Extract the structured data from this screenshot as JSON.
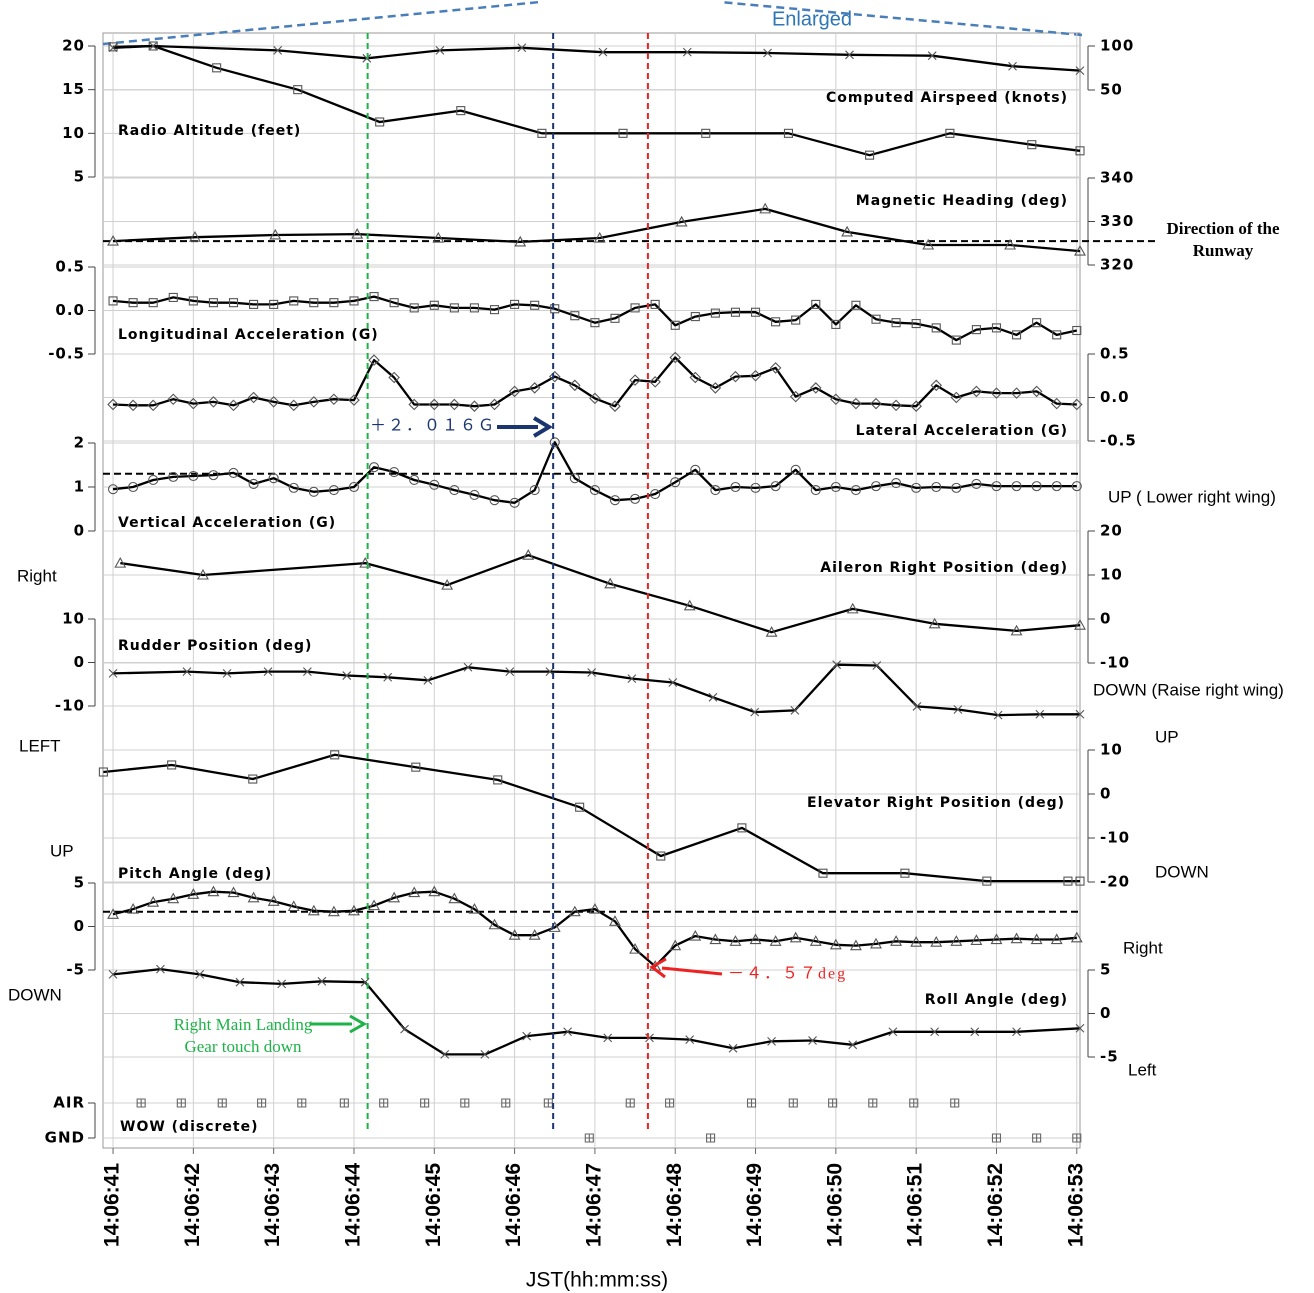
{
  "chart_data": {
    "type": "line",
    "enlarged_label": "Enlarged",
    "xlabel": "JST(hh:mm:ss)",
    "xlim": [
      40.875,
      53.04
    ],
    "xticks": [
      {
        "value": 41,
        "label": "14:06:41"
      },
      {
        "value": 42,
        "label": "14:06:42"
      },
      {
        "value": 43,
        "label": "14:06:43"
      },
      {
        "value": 44,
        "label": "14:06:44"
      },
      {
        "value": 45,
        "label": "14:06:45"
      },
      {
        "value": 46,
        "label": "14:06:46"
      },
      {
        "value": 47,
        "label": "14:06:47"
      },
      {
        "value": 48,
        "label": "14:06:48"
      },
      {
        "value": 49,
        "label": "14:06:49"
      },
      {
        "value": 50,
        "label": "14:06:50"
      },
      {
        "value": 51,
        "label": "14:06:51"
      },
      {
        "value": 52,
        "label": "14:06:52"
      },
      {
        "value": 53,
        "label": "14:06:53"
      }
    ],
    "grid": true,
    "events": [
      {
        "x": 44.17,
        "color": "#1db347"
      },
      {
        "x": 46.48,
        "color": "#1a3570"
      },
      {
        "x": 47.66,
        "color": "#ee2222"
      }
    ],
    "annotations": [
      {
        "text": "Right Main Landing Gear touch down",
        "color": "#1db347"
      },
      {
        "text": "＋２．０１６Ｇ",
        "color": "#1a3570"
      },
      {
        "text": "－４．５７deg",
        "color": "#ee2222"
      }
    ],
    "series": [
      {
        "name": "Radio Altitude (feet)",
        "color": "#000000",
        "axis": "y",
        "marker": "square",
        "ylim": [
          5,
          20
        ],
        "yticks": [
          5,
          10,
          15,
          20
        ],
        "x": [
          41,
          41.5,
          42.29,
          43.3,
          44.32,
          45.33,
          46.34,
          47.35,
          48.38,
          49.41,
          50.42,
          51.42,
          52.44,
          53.04
        ],
        "values": [
          19.9,
          20,
          17.5,
          15,
          11.3,
          12.6,
          10,
          10,
          10,
          10,
          7.5,
          10,
          8.7,
          8.0
        ]
      },
      {
        "name": "Computed Airspeed (knots)",
        "color": "#000000",
        "axis": "y2",
        "marker": "x",
        "ylim": [
          50,
          100
        ],
        "yticks": [
          50,
          100
        ],
        "x": [
          41,
          41.5,
          43.05,
          44.16,
          45.07,
          46.09,
          47.1,
          48.15,
          49.15,
          50.17,
          51.2,
          52.2,
          53.04
        ],
        "values": [
          98,
          100,
          95,
          86,
          95,
          98,
          93,
          93,
          92,
          90,
          89,
          77,
          72
        ]
      },
      {
        "name": "Magnetic Heading (deg)",
        "color": "#000000",
        "axis": "y2",
        "marker": "triangle",
        "ylim": [
          320,
          340
        ],
        "yticks": [
          320,
          330,
          340
        ],
        "reference_line": 325.5,
        "reference_label": "Direction of the Runway",
        "x": [
          41,
          42.02,
          43.02,
          44.04,
          45.05,
          46.07,
          47.06,
          48.08,
          49.12,
          50.14,
          51.15,
          52.17,
          53.04
        ],
        "values": [
          325.5,
          326.4,
          326.9,
          327.1,
          326.2,
          325.3,
          326.2,
          329.9,
          332.9,
          327.6,
          324.6,
          324.6,
          323.2
        ]
      },
      {
        "name": "Longitudinal Acceleration (G)",
        "color": "#000000",
        "axis": "y",
        "marker": "square",
        "ylim": [
          -0.5,
          0.5
        ],
        "yticks": [
          -0.5,
          {
            "value": 0,
            "label": "0.0"
          },
          0.5
        ],
        "x": [
          41,
          41.25,
          41.5,
          41.75,
          42,
          42.25,
          42.5,
          42.75,
          43,
          43.25,
          43.5,
          43.75,
          44,
          44.25,
          44.5,
          44.75,
          45,
          45.25,
          45.5,
          45.75,
          46,
          46.25,
          46.5,
          46.75,
          47,
          47.25,
          47.5,
          47.75,
          48,
          48.25,
          48.5,
          48.75,
          49,
          49.25,
          49.5,
          49.75,
          50,
          50.25,
          50.5,
          50.75,
          51,
          51.25,
          51.5,
          51.75,
          52,
          52.25,
          52.5,
          52.75,
          53
        ],
        "values": [
          0.11,
          0.09,
          0.09,
          0.15,
          0.11,
          0.09,
          0.09,
          0.07,
          0.07,
          0.11,
          0.09,
          0.09,
          0.11,
          0.16,
          0.09,
          0.03,
          0.06,
          0.03,
          0.03,
          0.01,
          0.07,
          0.06,
          0.02,
          -0.06,
          -0.14,
          -0.09,
          0.03,
          0.07,
          -0.17,
          -0.07,
          -0.03,
          -0.02,
          -0.02,
          -0.13,
          -0.11,
          0.07,
          -0.16,
          0.06,
          -0.1,
          -0.14,
          -0.15,
          -0.2,
          -0.34,
          -0.22,
          -0.2,
          -0.28,
          -0.14,
          -0.28,
          -0.23
        ]
      },
      {
        "name": "Lateral Acceleration (G)",
        "color": "#000000",
        "axis": "y2",
        "marker": "diamond",
        "ylim": [
          -0.5,
          0.5
        ],
        "yticks": [
          -0.5,
          {
            "value": 0,
            "label": "0.0"
          },
          0.5
        ],
        "x": [
          41,
          41.25,
          41.5,
          41.75,
          42,
          42.25,
          42.5,
          42.75,
          43,
          43.25,
          43.5,
          43.75,
          44,
          44.25,
          44.5,
          44.75,
          45,
          45.25,
          45.5,
          45.75,
          46,
          46.25,
          46.5,
          46.75,
          47,
          47.25,
          47.5,
          47.75,
          48,
          48.25,
          48.5,
          48.75,
          49,
          49.25,
          49.5,
          49.75,
          50,
          50.25,
          50.5,
          50.75,
          51,
          51.25,
          51.5,
          51.75,
          52,
          52.25,
          52.5,
          52.75,
          53
        ],
        "values": [
          -0.08,
          -0.09,
          -0.09,
          -0.02,
          -0.07,
          -0.05,
          -0.09,
          0.0,
          -0.05,
          -0.09,
          -0.05,
          -0.02,
          -0.03,
          0.43,
          0.23,
          -0.08,
          -0.08,
          -0.08,
          -0.1,
          -0.08,
          0.07,
          0.11,
          0.24,
          0.14,
          -0.01,
          -0.1,
          0.2,
          0.18,
          0.46,
          0.23,
          0.11,
          0.24,
          0.25,
          0.34,
          0.01,
          0.11,
          -0.02,
          -0.07,
          -0.07,
          -0.09,
          -0.1,
          0.14,
          0.0,
          0.07,
          0.05,
          0.05,
          0.07,
          -0.07,
          -0.08
        ]
      },
      {
        "name": "Vertical Acceleration (G)",
        "color": "#000000",
        "axis": "y",
        "marker": "circle",
        "ylim": [
          0,
          2
        ],
        "yticks": [
          0,
          1,
          2
        ],
        "reference_line": 1.3,
        "x": [
          41,
          41.25,
          41.5,
          41.75,
          42,
          42.25,
          42.5,
          42.75,
          43,
          43.25,
          43.5,
          43.75,
          44,
          44.25,
          44.5,
          44.75,
          45,
          45.25,
          45.5,
          45.75,
          46,
          46.25,
          46.5,
          46.75,
          47,
          47.25,
          47.5,
          47.75,
          48,
          48.25,
          48.5,
          48.75,
          49,
          49.25,
          49.5,
          49.75,
          50,
          50.25,
          50.5,
          50.75,
          51,
          51.25,
          51.5,
          51.75,
          52,
          52.25,
          52.5,
          52.75,
          53
        ],
        "values": [
          0.95,
          1.0,
          1.16,
          1.23,
          1.25,
          1.27,
          1.32,
          1.07,
          1.2,
          0.98,
          0.89,
          0.93,
          1.0,
          1.45,
          1.34,
          1.16,
          1.05,
          0.93,
          0.82,
          0.7,
          0.64,
          0.93,
          2.016,
          1.2,
          0.93,
          0.7,
          0.73,
          0.84,
          1.11,
          1.39,
          0.93,
          1.0,
          0.98,
          1.02,
          1.39,
          0.93,
          1.0,
          0.93,
          1.02,
          1.09,
          0.98,
          1.0,
          0.98,
          1.07,
          1.02,
          1.02,
          1.02,
          1.02,
          1.02
        ]
      },
      {
        "name": "Aileron Right Position (deg)",
        "color": "#000000",
        "axis": "y2",
        "marker": "triangle",
        "ylim": [
          -10,
          20
        ],
        "yticks": [
          -10,
          0,
          10,
          20
        ],
        "side_labels": [
          "UP ( Lower right wing)",
          "DOWN (Raise right wing)"
        ],
        "x": [
          41.09,
          42.12,
          44.14,
          45.16,
          46.17,
          47.19,
          48.18,
          49.2,
          50.21,
          51.23,
          52.25,
          53.04
        ],
        "values": [
          12.7,
          10.0,
          12.7,
          7.7,
          14.5,
          8.0,
          3.0,
          -3.0,
          2.3,
          -1.1,
          -2.7,
          -1.4
        ]
      },
      {
        "name": "Rudder Position (deg)",
        "color": "#000000",
        "axis": "y",
        "marker": "x",
        "ylim": [
          -10,
          10
        ],
        "yticks": [
          -10,
          0,
          10
        ],
        "side_labels": [
          "Right",
          "LEFT"
        ],
        "x": [
          41,
          41.92,
          42.42,
          42.93,
          43.42,
          43.91,
          44.42,
          44.92,
          45.42,
          45.94,
          46.44,
          46.96,
          47.46,
          47.97,
          48.47,
          48.99,
          49.49,
          50.01,
          50.51,
          51.01,
          51.52,
          52.02,
          52.54,
          53.04
        ],
        "values": [
          -2.5,
          -2.1,
          -2.5,
          -2.1,
          -2.1,
          -3.0,
          -3.4,
          -4.1,
          -1.1,
          -2.1,
          -2.1,
          -2.3,
          -3.7,
          -4.6,
          -8.0,
          -11.4,
          -11.0,
          -0.5,
          -0.7,
          -10.1,
          -10.8,
          -12.1,
          -11.9,
          -11.9
        ]
      },
      {
        "name": "Elevator Right Position (deg)",
        "color": "#000000",
        "axis": "y2",
        "marker": "square",
        "ylim": [
          -20,
          10
        ],
        "yticks": [
          -20,
          -10,
          0,
          10
        ],
        "side_labels": [
          "UP",
          "DOWN"
        ],
        "x": [
          40.88,
          41.73,
          42.74,
          43.76,
          44.77,
          45.79,
          46.81,
          47.82,
          48.83,
          49.84,
          50.86,
          51.88,
          52.89,
          53.04
        ],
        "values": [
          5.0,
          6.6,
          3.4,
          8.9,
          6.1,
          3.2,
          -3.0,
          -14.1,
          -7.7,
          -18.0,
          -18.0,
          -19.8,
          -19.8,
          -19.8
        ]
      },
      {
        "name": "Pitch Angle (deg)",
        "color": "#000000",
        "axis": "y",
        "marker": "triangle",
        "ylim": [
          -5,
          5
        ],
        "yticks": [
          -5,
          0,
          5
        ],
        "reference_line": 1.7,
        "side_labels": [
          "UP",
          "DOWN"
        ],
        "x": [
          41,
          41.25,
          41.5,
          41.75,
          42,
          42.25,
          42.5,
          42.75,
          43,
          43.25,
          43.5,
          43.75,
          44,
          44.25,
          44.5,
          44.75,
          45,
          45.25,
          45.5,
          45.75,
          46,
          46.25,
          46.5,
          46.75,
          47,
          47.25,
          47.5,
          47.75,
          48,
          48.25,
          48.5,
          48.75,
          49,
          49.25,
          49.5,
          49.75,
          50,
          50.25,
          50.5,
          50.75,
          51,
          51.25,
          51.5,
          51.75,
          52,
          52.25,
          52.5,
          52.75,
          53
        ],
        "values": [
          1.4,
          2.0,
          2.8,
          3.2,
          3.7,
          4.0,
          3.9,
          3.3,
          2.9,
          2.3,
          1.8,
          1.7,
          1.8,
          2.4,
          3.3,
          3.9,
          4.0,
          3.2,
          2.0,
          0.2,
          -1.0,
          -1.0,
          -0.1,
          1.7,
          2.0,
          0.6,
          -2.6,
          -4.57,
          -2.2,
          -1.1,
          -1.5,
          -1.7,
          -1.5,
          -1.7,
          -1.3,
          -1.7,
          -2.1,
          -2.2,
          -2.0,
          -1.7,
          -1.8,
          -1.8,
          -1.7,
          -1.6,
          -1.5,
          -1.4,
          -1.5,
          -1.5,
          -1.3
        ]
      },
      {
        "name": "Roll Angle (deg)",
        "color": "#000000",
        "axis": "y2",
        "marker": "x",
        "ylim": [
          -5,
          5
        ],
        "yticks": [
          -5,
          0,
          5
        ],
        "side_labels": [
          "Right",
          "Left"
        ],
        "x": [
          41,
          41.59,
          42.08,
          42.58,
          43.1,
          43.6,
          44.14,
          44.63,
          45.13,
          45.63,
          46.15,
          46.66,
          47.16,
          47.68,
          48.18,
          48.72,
          49.2,
          49.71,
          50.21,
          50.71,
          51.23,
          51.73,
          52.25,
          53.04
        ],
        "values": [
          4.5,
          5.1,
          4.5,
          3.6,
          3.4,
          3.7,
          3.6,
          -1.8,
          -4.7,
          -4.7,
          -2.6,
          -2.1,
          -2.8,
          -2.8,
          -3.0,
          -4.0,
          -3.2,
          -3.1,
          -3.6,
          -2.1,
          -2.1,
          -2.1,
          -2.1,
          -1.7
        ]
      },
      {
        "name": "WOW (discrete)",
        "color": "#666666",
        "axis": "y",
        "marker": "squareplus",
        "line": false,
        "ylim": [
          0,
          1
        ],
        "yticks": [
          {
            "value": 0,
            "label": "GND"
          },
          {
            "value": 1,
            "label": "AIR"
          }
        ],
        "x": [
          41.35,
          41.85,
          42.36,
          42.85,
          43.35,
          43.88,
          44.37,
          44.88,
          45.38,
          45.89,
          46.42,
          46.93,
          47.44,
          47.93,
          48.44,
          48.95,
          49.47,
          49.96,
          50.46,
          50.97,
          51.48,
          52.0,
          52.5,
          53.0
        ],
        "values": [
          1,
          1,
          1,
          1,
          1,
          1,
          1,
          1,
          1,
          1,
          1,
          0,
          1,
          1,
          0,
          1,
          1,
          1,
          1,
          1,
          1,
          0,
          0,
          0
        ]
      }
    ]
  }
}
